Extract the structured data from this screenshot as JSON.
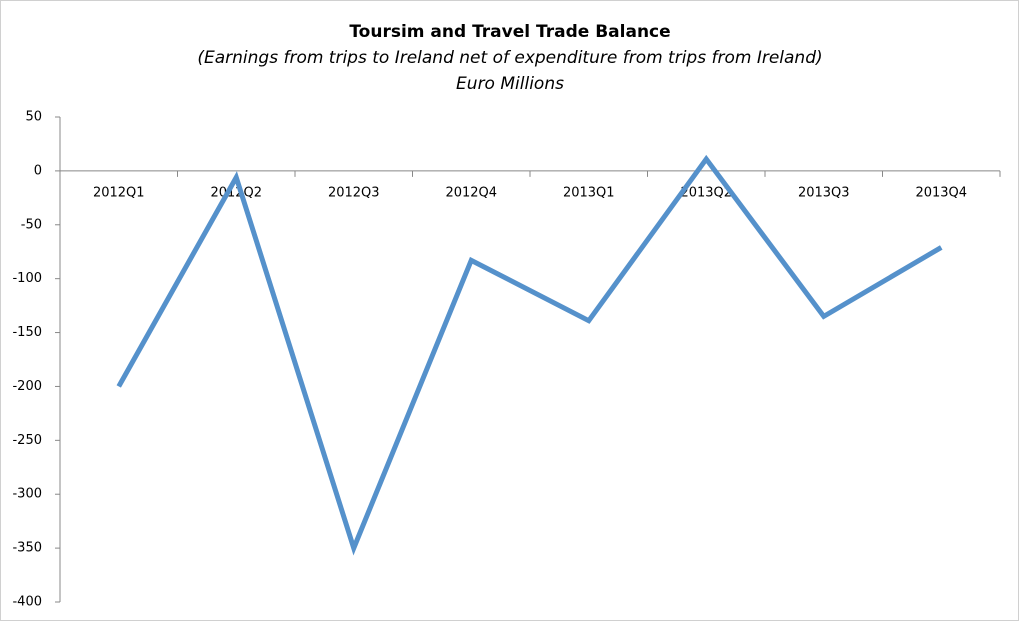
{
  "chart_data": {
    "type": "line",
    "title": "Toursim and Travel Trade Balance",
    "subtitle": "(Earnings from trips to Ireland net of expenditure from trips from Ireland)",
    "subtitle2": "Euro Millions",
    "categories": [
      "2012Q1",
      "2012Q2",
      "2012Q3",
      "2012Q4",
      "2013Q1",
      "2013Q2",
      "2013Q3",
      "2013Q4"
    ],
    "series": [
      {
        "color": "#5591cb",
        "values": [
          -200,
          -6,
          -350,
          -83,
          -139,
          11,
          -135,
          -71
        ]
      }
    ],
    "ylim": [
      -400,
      50
    ],
    "yticks": [
      -400,
      -350,
      -300,
      -250,
      -200,
      -150,
      -100,
      -50,
      0,
      50
    ],
    "grid": false
  }
}
